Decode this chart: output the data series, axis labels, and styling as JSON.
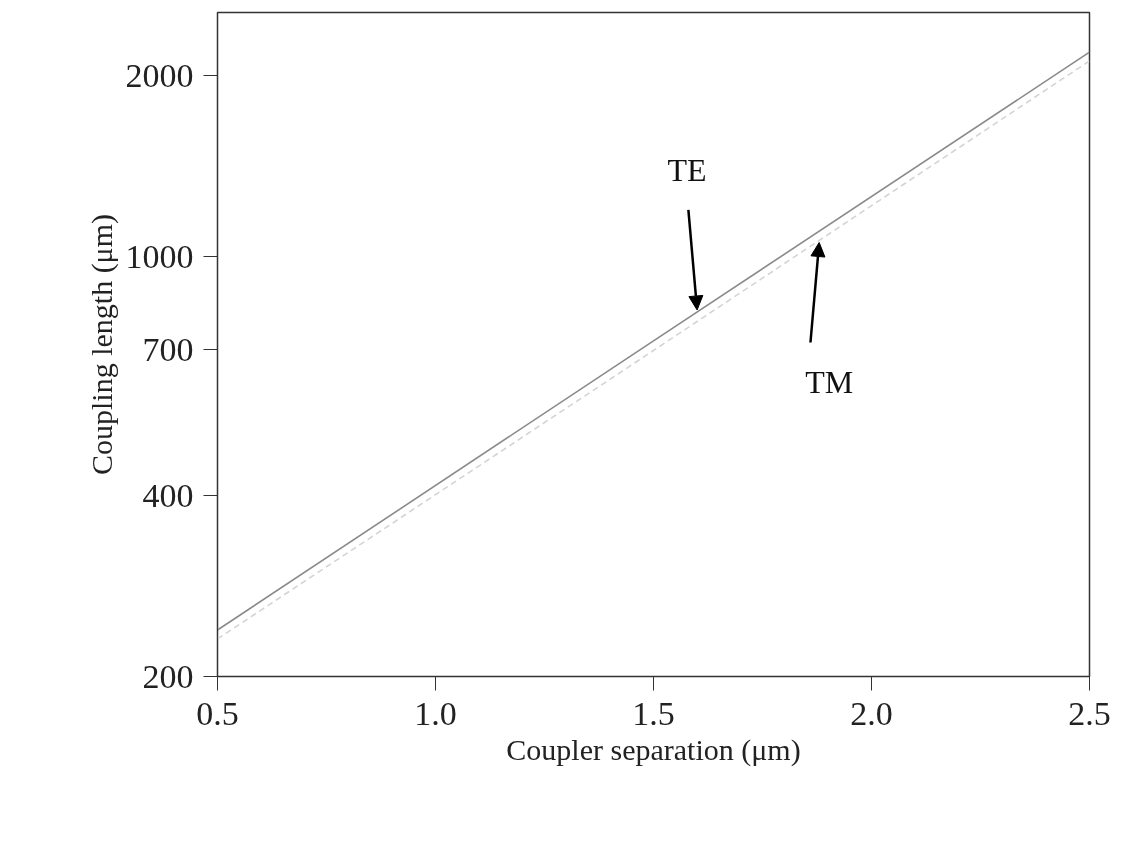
{
  "chart_data": {
    "type": "line",
    "xlabel": "Coupler separation (μm)",
    "ylabel": "Coupling length (μm)",
    "xlim": [
      0.5,
      2.5
    ],
    "xticks": [
      {
        "value": 0.5,
        "label": "0.5"
      },
      {
        "value": 1.0,
        "label": "1.0"
      },
      {
        "value": 1.5,
        "label": "1.5"
      },
      {
        "value": 2.0,
        "label": "2.0"
      },
      {
        "value": 2.5,
        "label": "2.5"
      }
    ],
    "ylim": [
      200,
      2550
    ],
    "yticks": [
      200,
      400,
      700,
      1000,
      2000
    ],
    "log": "y",
    "grid": false,
    "legend": false,
    "series": [
      {
        "color": "#8a8a8a",
        "line_style": "solid",
        "x": [
          0.5,
          1.5,
          2.5
        ],
        "values": [
          239,
          724,
          2190
        ]
      },
      {
        "color": "#d4d4d4",
        "line_style": "dashed",
        "x": [
          0.5,
          1.5,
          2.5
        ],
        "values": [
          231,
          698,
          2118
        ]
      }
    ],
    "annotations": [
      {
        "text": "TE",
        "x": 1.6,
        "y": 809
      },
      {
        "text": "TM",
        "x": 1.88,
        "y": 1064
      }
    ]
  }
}
